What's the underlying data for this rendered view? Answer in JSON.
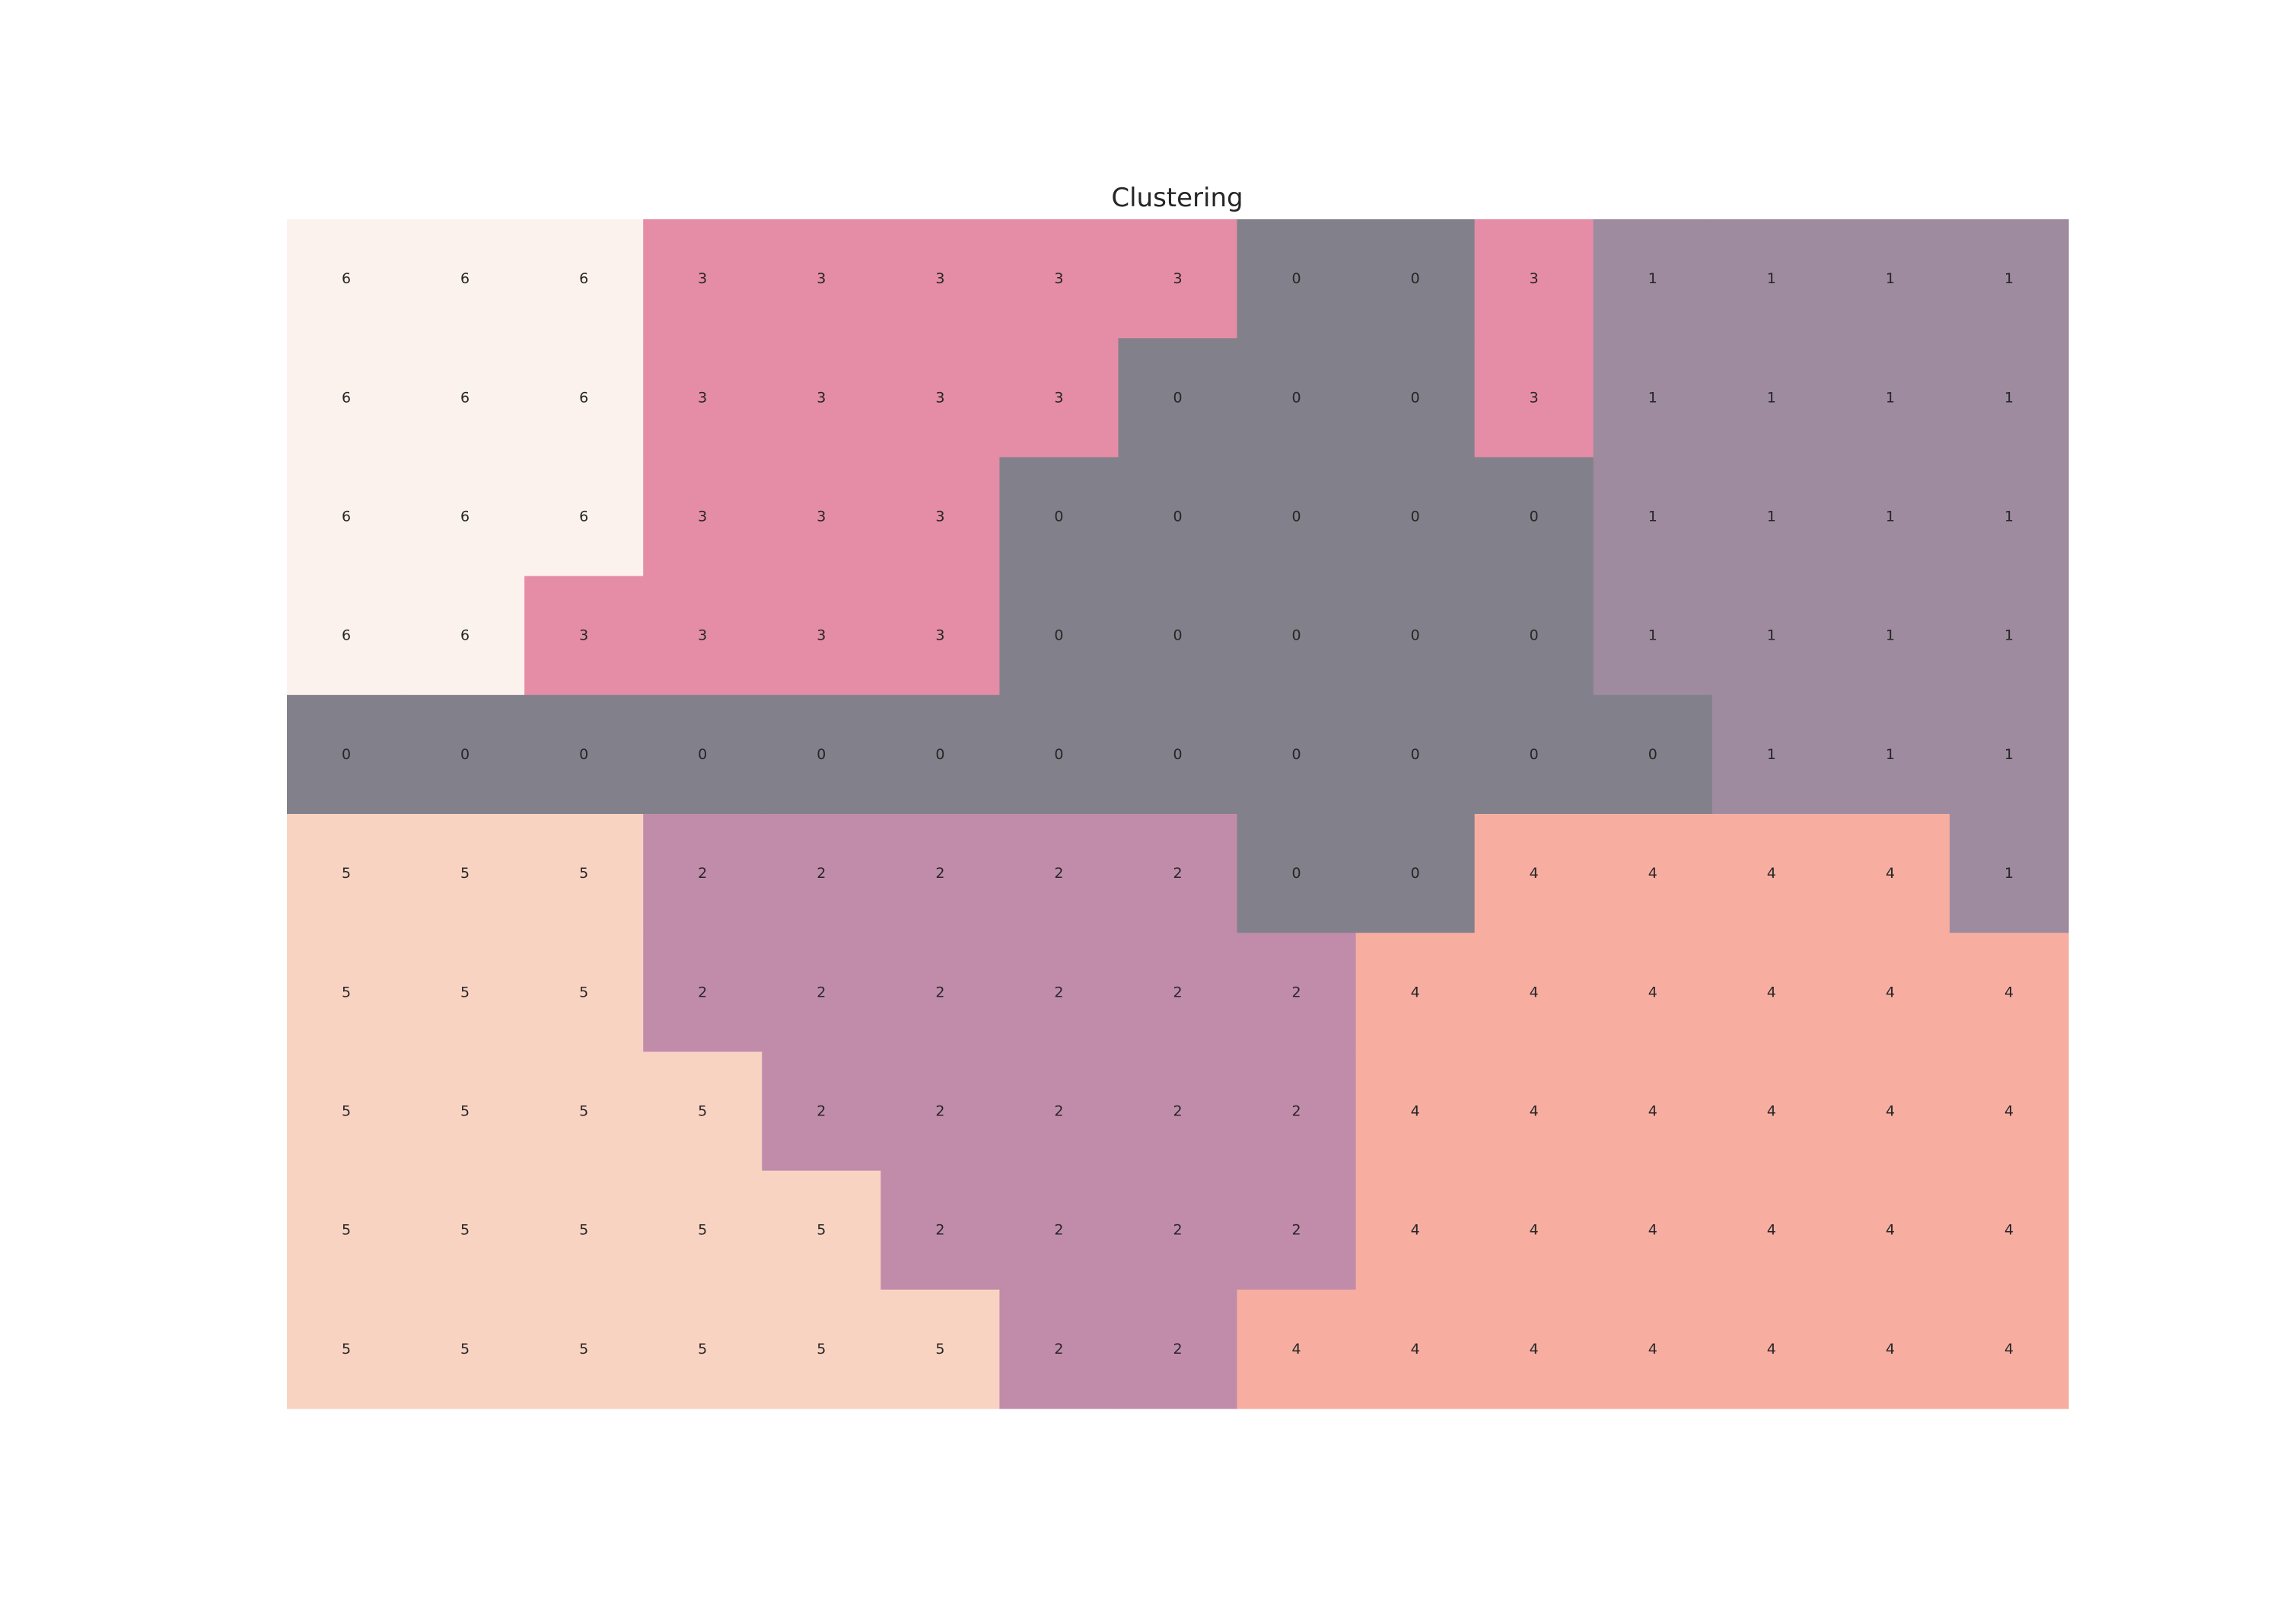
{
  "chart_data": {
    "type": "heatmap",
    "title": "Clustering",
    "rows": 10,
    "cols": 15,
    "values": [
      [
        6,
        6,
        6,
        3,
        3,
        3,
        3,
        3,
        0,
        0,
        3,
        1,
        1,
        1,
        1
      ],
      [
        6,
        6,
        6,
        3,
        3,
        3,
        3,
        0,
        0,
        0,
        3,
        1,
        1,
        1,
        1
      ],
      [
        6,
        6,
        6,
        3,
        3,
        3,
        0,
        0,
        0,
        0,
        0,
        1,
        1,
        1,
        1
      ],
      [
        6,
        6,
        3,
        3,
        3,
        3,
        0,
        0,
        0,
        0,
        0,
        1,
        1,
        1,
        1
      ],
      [
        0,
        0,
        0,
        0,
        0,
        0,
        0,
        0,
        0,
        0,
        0,
        0,
        1,
        1,
        1
      ],
      [
        5,
        5,
        5,
        2,
        2,
        2,
        2,
        2,
        0,
        0,
        4,
        4,
        4,
        4,
        1
      ],
      [
        5,
        5,
        5,
        2,
        2,
        2,
        2,
        2,
        2,
        4,
        4,
        4,
        4,
        4,
        4
      ],
      [
        5,
        5,
        5,
        5,
        2,
        2,
        2,
        2,
        2,
        4,
        4,
        4,
        4,
        4,
        4
      ],
      [
        5,
        5,
        5,
        5,
        5,
        2,
        2,
        2,
        2,
        4,
        4,
        4,
        4,
        4,
        4
      ],
      [
        5,
        5,
        5,
        5,
        5,
        5,
        2,
        2,
        4,
        4,
        4,
        4,
        4,
        4,
        4
      ]
    ],
    "cluster_colors": {
      "0": "#82818b",
      "1": "#9e8b9f",
      "2": "#c18caa",
      "3": "#e58ca6",
      "4": "#f7aea1",
      "5": "#f9d3c2",
      "6": "#fcf2ed"
    },
    "grid": false,
    "legend": "none"
  }
}
